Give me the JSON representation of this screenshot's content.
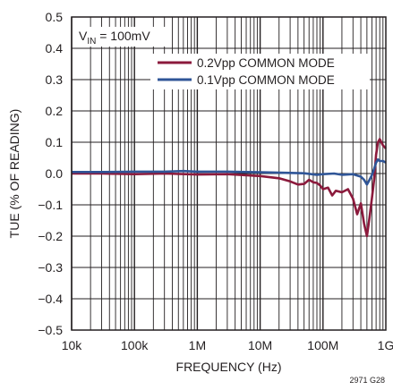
{
  "chart_data": {
    "type": "line",
    "xlabel": "FREQUENCY (Hz)",
    "ylabel": "TUE (% OF READING)",
    "x_scale": "log",
    "xlim": [
      10000,
      1000000000
    ],
    "ylim": [
      -0.5,
      0.5
    ],
    "x_tick_values": [
      10000,
      100000,
      1000000,
      10000000,
      100000000,
      1000000000
    ],
    "x_tick_labels": [
      "10k",
      "100k",
      "1M",
      "10M",
      "100M",
      "1G"
    ],
    "y_ticks": [
      0.5,
      0.4,
      0.3,
      0.2,
      0.1,
      0.0,
      -0.1,
      -0.2,
      -0.3,
      -0.4,
      -0.5
    ],
    "y_tick_labels": [
      "0.5",
      "0.4",
      "0.3",
      "0.2",
      "0.1",
      "0.0",
      "−0.1",
      "−0.2",
      "−0.3",
      "−0.4",
      "−0.5"
    ],
    "grid": true,
    "legend_position": "top-right",
    "annotation": {
      "prefix": "V",
      "subscript": "IN",
      "suffix": " = 100mV"
    },
    "figure_id": "2971 G28",
    "series": [
      {
        "name": "0.2Vpp COMMON MODE",
        "color": "#8b1a3c",
        "x": [
          10000,
          30000,
          100000,
          300000,
          1000000,
          3000000,
          10000000,
          20000000,
          30000000,
          40000000,
          50000000,
          60000000,
          70000000,
          80000000,
          90000000,
          100000000,
          120000000,
          140000000,
          160000000,
          200000000,
          250000000,
          300000000,
          350000000,
          400000000,
          450000000,
          500000000,
          550000000,
          600000000,
          650000000,
          700000000,
          750000000,
          800000000,
          850000000,
          900000000,
          1000000000
        ],
        "y": [
          0.0,
          0.0,
          -0.002,
          0.0,
          -0.003,
          -0.002,
          -0.008,
          -0.015,
          -0.025,
          -0.035,
          -0.033,
          -0.02,
          -0.028,
          -0.03,
          -0.038,
          -0.05,
          -0.045,
          -0.07,
          -0.055,
          -0.06,
          -0.05,
          -0.08,
          -0.13,
          -0.095,
          -0.16,
          -0.2,
          -0.14,
          -0.08,
          -0.02,
          0.06,
          0.1,
          0.11,
          0.1,
          0.09,
          0.08
        ]
      },
      {
        "name": "0.1Vpp COMMON MODE",
        "color": "#2f5597",
        "x": [
          10000,
          30000,
          100000,
          300000,
          600000,
          1000000,
          3000000,
          10000000,
          30000000,
          50000000,
          80000000,
          100000000,
          150000000,
          200000000,
          300000000,
          400000000,
          450000000,
          500000000,
          550000000,
          600000000,
          650000000,
          700000000,
          750000000,
          800000000,
          900000000,
          1000000000
        ],
        "y": [
          0.005,
          0.005,
          0.006,
          0.006,
          0.008,
          0.006,
          0.006,
          0.004,
          0.002,
          0.001,
          -0.004,
          -0.002,
          0.0,
          -0.004,
          -0.002,
          -0.01,
          -0.02,
          -0.035,
          -0.02,
          -0.005,
          0.015,
          0.035,
          0.045,
          0.04,
          0.04,
          0.035
        ]
      }
    ]
  }
}
